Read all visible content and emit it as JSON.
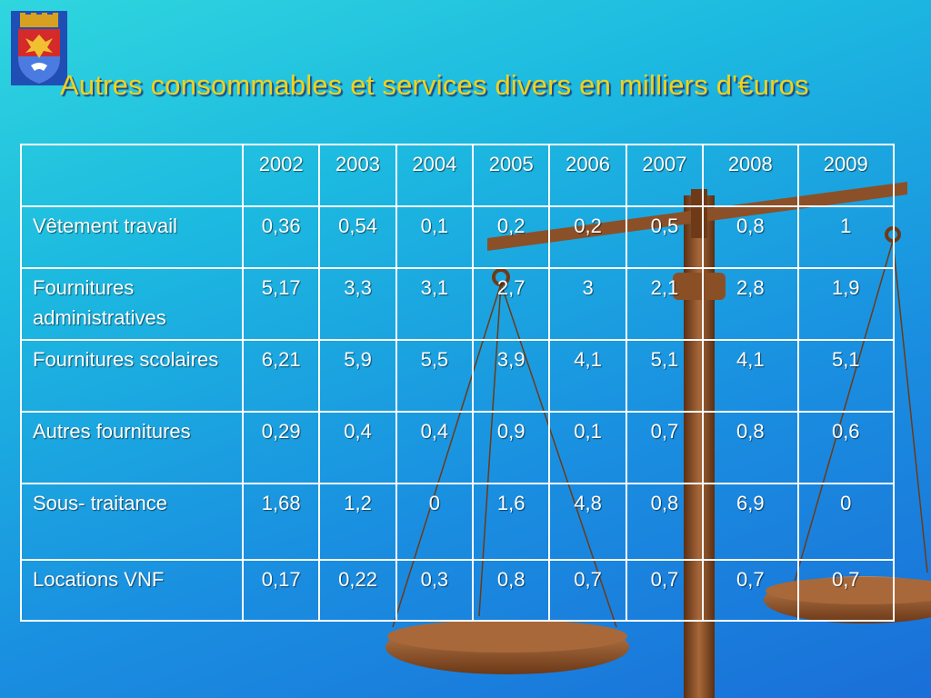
{
  "slide": {
    "title": "Autres consommables et services divers en milliers d'€uros"
  },
  "table": {
    "years": [
      "2002",
      "2003",
      "2004",
      "2005",
      "2006",
      "2007",
      "2008",
      "2009"
    ],
    "rows": [
      {
        "label": "Vêtement travail",
        "values": [
          "0,36",
          "0,54",
          "0,1",
          "0,2",
          "0,2",
          "0,5",
          "0,8",
          "1"
        ]
      },
      {
        "label": "Fournitures administratives",
        "values": [
          "5,17",
          "3,3",
          "3,1",
          "2,7",
          "3",
          "2,1",
          "2,8",
          "1,9"
        ]
      },
      {
        "label": "Fournitures scolaires",
        "values": [
          "6,21",
          "5,9",
          "5,5",
          "3,9",
          "4,1",
          "5,1",
          "4,1",
          "5,1"
        ]
      },
      {
        "label": "Autres fournitures",
        "values": [
          "0,29",
          "0,4",
          "0,4",
          "0,9",
          "0,1",
          "0,7",
          "0,8",
          "0,6"
        ]
      },
      {
        "label": "Sous- traitance",
        "values": [
          "1,68",
          "1,2",
          "0",
          "1,6",
          "4,8",
          "0,8",
          "6,9",
          "0"
        ]
      },
      {
        "label": "Locations VNF",
        "values": [
          "0,17",
          "0,22",
          "0,3",
          "0,8",
          "0,7",
          "0,7",
          "0,7",
          "0,7"
        ]
      }
    ]
  },
  "colors": {
    "title": "#f2d21a",
    "text": "#ffffff",
    "background_top": "#2fd6de",
    "background_bottom": "#1a6fd8"
  },
  "icons": {
    "crest": "coat-of-arms-icon",
    "scale": "balance-scale-icon"
  }
}
